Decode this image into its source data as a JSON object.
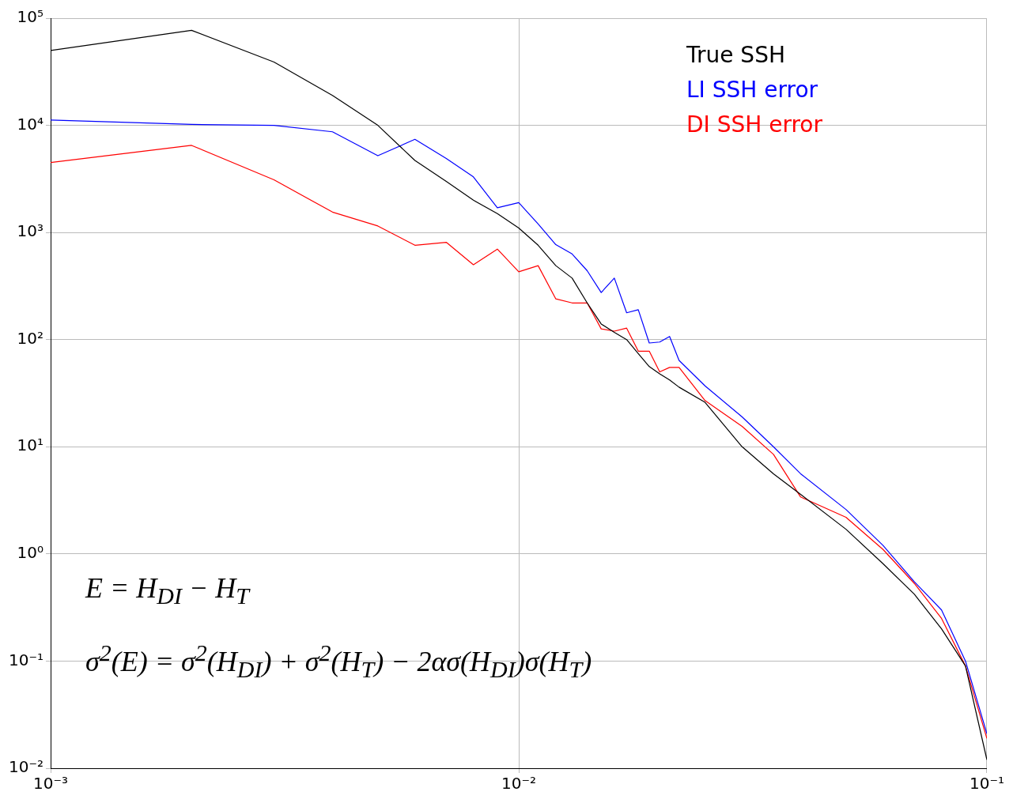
{
  "chart_data": {
    "type": "line",
    "log": "xy",
    "grid": true,
    "legend": "top right",
    "marker": "none",
    "line_style": "solid",
    "xlim": [
      0.001,
      0.1
    ],
    "xticks": [
      {
        "value": 0.001,
        "label": "10⁻³"
      },
      {
        "value": 0.01,
        "label": "10⁻²"
      },
      {
        "value": 0.1,
        "label": "10⁻¹"
      }
    ],
    "ylim": [
      0.01,
      100000
    ],
    "yticks": [
      {
        "value": 0.01,
        "label": "10⁻²"
      },
      {
        "value": 0.1,
        "label": "10⁻¹"
      },
      {
        "value": 1,
        "label": "10⁰"
      },
      {
        "value": 10,
        "label": "10¹"
      },
      {
        "value": 100,
        "label": "10²"
      },
      {
        "value": 1000,
        "label": "10³"
      },
      {
        "value": 10000,
        "label": "10⁴"
      },
      {
        "value": 100000,
        "label": "10⁵"
      }
    ],
    "x": [
      0.001,
      0.002,
      0.003,
      0.004,
      0.005,
      0.006,
      0.007,
      0.008,
      0.009,
      0.01,
      0.011,
      0.012,
      0.013,
      0.014,
      0.015,
      0.016,
      0.017,
      0.018,
      0.019,
      0.02,
      0.021,
      0.022,
      0.025,
      0.03,
      0.035,
      0.04,
      0.05,
      0.06,
      0.07,
      0.08,
      0.09,
      0.1
    ],
    "series": [
      {
        "name": "True SSH",
        "color": "#000000",
        "values": [
          50000,
          77000,
          39000,
          19000,
          10000,
          4700,
          3000,
          2000,
          1500,
          1100,
          760,
          490,
          375,
          220,
          140,
          117,
          100,
          74,
          56,
          48,
          42,
          36,
          26,
          10,
          5.6,
          3.6,
          1.7,
          0.81,
          0.42,
          0.2,
          0.09,
          0.012
        ]
      },
      {
        "name": "LI SSH error",
        "color": "#0000ff",
        "values": [
          11200,
          10200,
          10000,
          8700,
          5200,
          7400,
          4900,
          3300,
          1700,
          1900,
          1200,
          770,
          630,
          440,
          275,
          375,
          178,
          190,
          93,
          95,
          107,
          64,
          37,
          19,
          10,
          5.6,
          2.6,
          1.2,
          0.55,
          0.3,
          0.1,
          0.021
        ]
      },
      {
        "name": "DI SSH error",
        "color": "#ff0000",
        "values": [
          4500,
          6500,
          3100,
          1550,
          1150,
          760,
          810,
          500,
          700,
          430,
          490,
          240,
          220,
          220,
          126,
          120,
          128,
          78,
          78,
          50,
          55,
          55,
          27,
          15.5,
          8.5,
          3.4,
          2.2,
          1.1,
          0.53,
          0.25,
          0.09,
          0.019
        ]
      }
    ],
    "annotations": [
      "E = H$_{DI}$ − H$_{T}$",
      "σ$^{2}$(E) = σ$^{2}$(H$_{DI}$) + σ$^{2}$(H$_{T}$) − 2ασ(H$_{DI}$)σ(H$_{T}$)"
    ]
  }
}
